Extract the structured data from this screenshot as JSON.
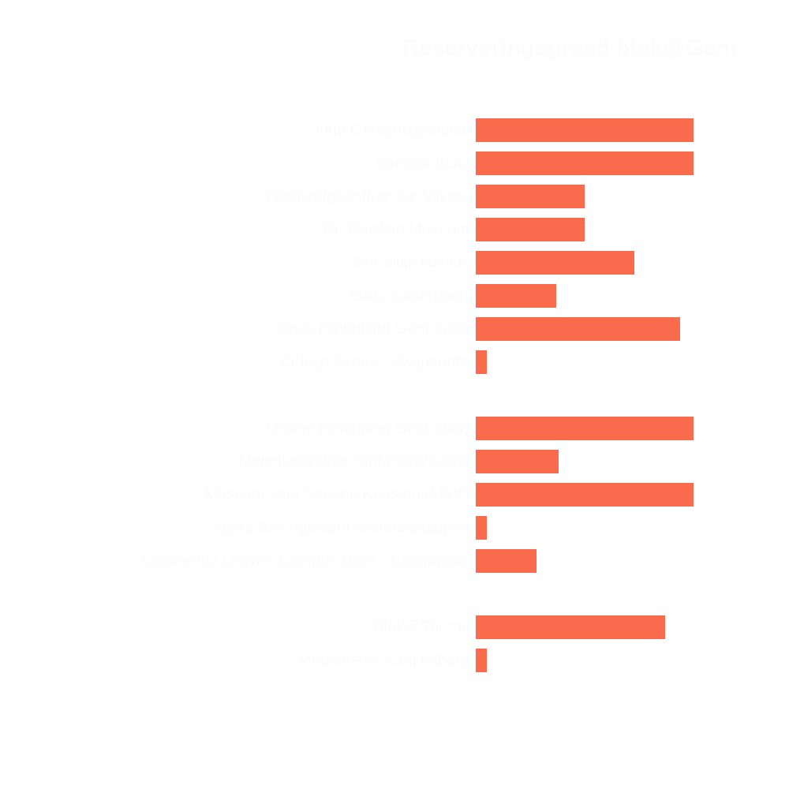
{
  "chart_data": {
    "type": "bar",
    "orientation": "horizontal",
    "title": "Reserveringsgraad blok@Gent",
    "categories": [
      "Oud Gerechtsgebouw",
      "Kantoor BDO",
      "Woonzorgcentrum De Vijvers",
      "Dr. Guislain Museum",
      "Sint-Michielshuis",
      "GAC Zuiderpoort",
      "Roze (Shopping Gent Zuid)",
      "Colruyt Group - Zwijnaarde",
      "Oranje (Shopping Gent Zuid)",
      "Monnikenzolder Sint-Pietersabdij",
      "Museum voor Schone Kunsten (MSK)",
      "Agora Bio-ingenieurswetenschappen",
      "Odisee/KU Leuven Campus Gent - Campusbib",
      "Blok@Thermi",
      "Mediatheek Kantienberg"
    ],
    "values": [
      100,
      100,
      50,
      50,
      73,
      37,
      94,
      5,
      100,
      38,
      100,
      5,
      28,
      87,
      5
    ],
    "value_unit": "percent of longest bar (no axis tick labels visible in image)",
    "spacer_rows_after_index": [
      7,
      12
    ],
    "xlabel": "",
    "ylabel": "",
    "grid": false,
    "legend": false,
    "axis_ticks_visible": false,
    "bar_color": "#fa6a4c",
    "title_color": "#fcfcfc",
    "label_color": "#fbfbfb",
    "background_color": "#ffffff"
  }
}
